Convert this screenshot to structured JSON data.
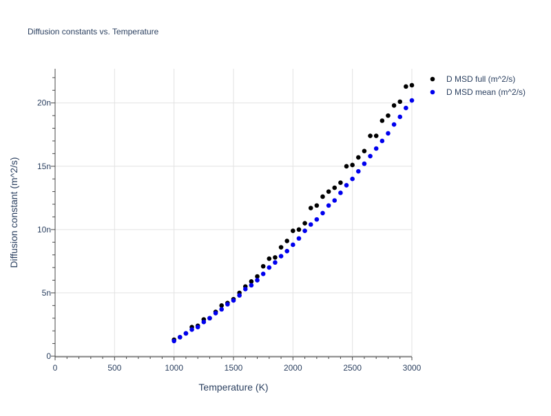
{
  "chart_data": {
    "type": "scatter",
    "title": "Diffusion constants vs. Temperature",
    "xlabel": "Temperature (K)",
    "ylabel": "Diffusion constant (m^2/s)",
    "xlim": [
      0,
      3000
    ],
    "ylim": [
      0,
      22.7
    ],
    "y_unit_suffix": "n",
    "x_ticks": [
      0,
      500,
      1000,
      1500,
      2000,
      2500,
      3000
    ],
    "x_tick_labels": [
      "0",
      "500",
      "1000",
      "1500",
      "2000",
      "2500",
      "3000"
    ],
    "y_ticks": [
      0,
      5,
      10,
      15,
      20
    ],
    "y_tick_labels": [
      "0",
      "5n",
      "10n",
      "15n",
      "20n"
    ],
    "grid": true,
    "legend_position": "top-right",
    "series": [
      {
        "name": "D MSD full (m^2/s)",
        "color": "#000000",
        "x": [
          1000,
          1050,
          1100,
          1150,
          1200,
          1250,
          1300,
          1350,
          1400,
          1450,
          1500,
          1550,
          1600,
          1650,
          1700,
          1750,
          1800,
          1850,
          1900,
          1950,
          2000,
          2050,
          2100,
          2150,
          2200,
          2250,
          2300,
          2350,
          2400,
          2450,
          2500,
          2550,
          2600,
          2650,
          2700,
          2750,
          2800,
          2850,
          2900,
          2950,
          3000
        ],
        "y": [
          1.3,
          1.5,
          1.8,
          2.3,
          2.4,
          2.9,
          3.0,
          3.5,
          4.0,
          4.2,
          4.5,
          5.0,
          5.5,
          5.9,
          6.3,
          7.1,
          7.7,
          7.8,
          8.6,
          9.1,
          9.9,
          10.0,
          10.5,
          11.7,
          11.9,
          12.6,
          13.0,
          13.3,
          13.7,
          15.0,
          15.1,
          15.7,
          16.2,
          17.4,
          17.4,
          18.6,
          19.0,
          19.8,
          20.1,
          21.3,
          21.4
        ]
      },
      {
        "name": "D MSD mean (m^2/s)",
        "color": "#0000ee",
        "x": [
          1000,
          1050,
          1100,
          1150,
          1200,
          1250,
          1300,
          1350,
          1400,
          1450,
          1500,
          1550,
          1600,
          1650,
          1700,
          1750,
          1800,
          1850,
          1900,
          1950,
          2000,
          2050,
          2100,
          2150,
          2200,
          2250,
          2300,
          2350,
          2400,
          2450,
          2500,
          2550,
          2600,
          2650,
          2700,
          2750,
          2800,
          2850,
          2900,
          2950,
          3000
        ],
        "y": [
          1.2,
          1.5,
          1.8,
          2.1,
          2.3,
          2.7,
          3.0,
          3.4,
          3.7,
          4.1,
          4.4,
          4.8,
          5.3,
          5.6,
          6.0,
          6.5,
          7.0,
          7.4,
          7.9,
          8.3,
          8.8,
          9.3,
          9.9,
          10.4,
          10.8,
          11.3,
          11.9,
          12.3,
          12.9,
          13.5,
          14.0,
          14.6,
          15.2,
          15.8,
          16.4,
          17.0,
          17.6,
          18.3,
          18.9,
          19.6,
          20.2
        ]
      }
    ]
  }
}
